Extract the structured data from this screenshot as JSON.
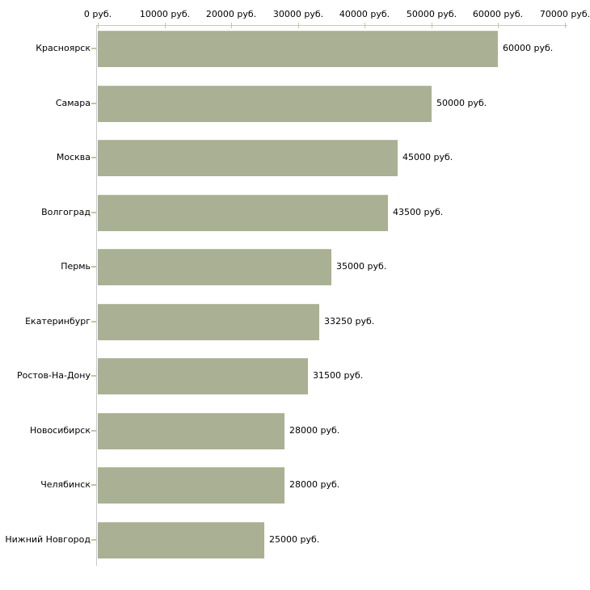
{
  "chart_data": {
    "type": "bar",
    "orientation": "horizontal",
    "title": "",
    "categories": [
      "Красноярск",
      "Самара",
      "Москва",
      "Волгоград",
      "Пермь",
      "Екатеринбург",
      "Ростов-На-Дону",
      "Новосибирск",
      "Челябинск",
      "Нижний Новгород"
    ],
    "values": [
      60000,
      50000,
      45000,
      43500,
      35000,
      33250,
      31500,
      28000,
      28000,
      25000
    ],
    "value_labels": [
      "60000 руб.",
      "50000 руб.",
      "45000 руб.",
      "43500 руб.",
      "35000 руб.",
      "33250 руб.",
      "31500 руб.",
      "28000 руб.",
      "28000 руб.",
      "25000 руб."
    ],
    "x_tick_values": [
      0,
      10000,
      20000,
      30000,
      40000,
      50000,
      60000,
      70000
    ],
    "x_tick_labels": [
      "0 руб.",
      "10000 руб.",
      "20000 руб.",
      "30000 руб.",
      "40000 руб.",
      "50000 руб.",
      "60000 руб.",
      "70000 руб."
    ],
    "xlim": [
      0,
      70000
    ],
    "xlabel": "",
    "ylabel": "",
    "unit_suffix": " руб.",
    "grid": false,
    "legend": null,
    "colors": {
      "bar": "#aab094",
      "bar_edge": "#b9bfa6",
      "axis": "#c8c8c8",
      "tick": "#c3c59f",
      "text": "#000000",
      "background": "#ffffff"
    }
  }
}
